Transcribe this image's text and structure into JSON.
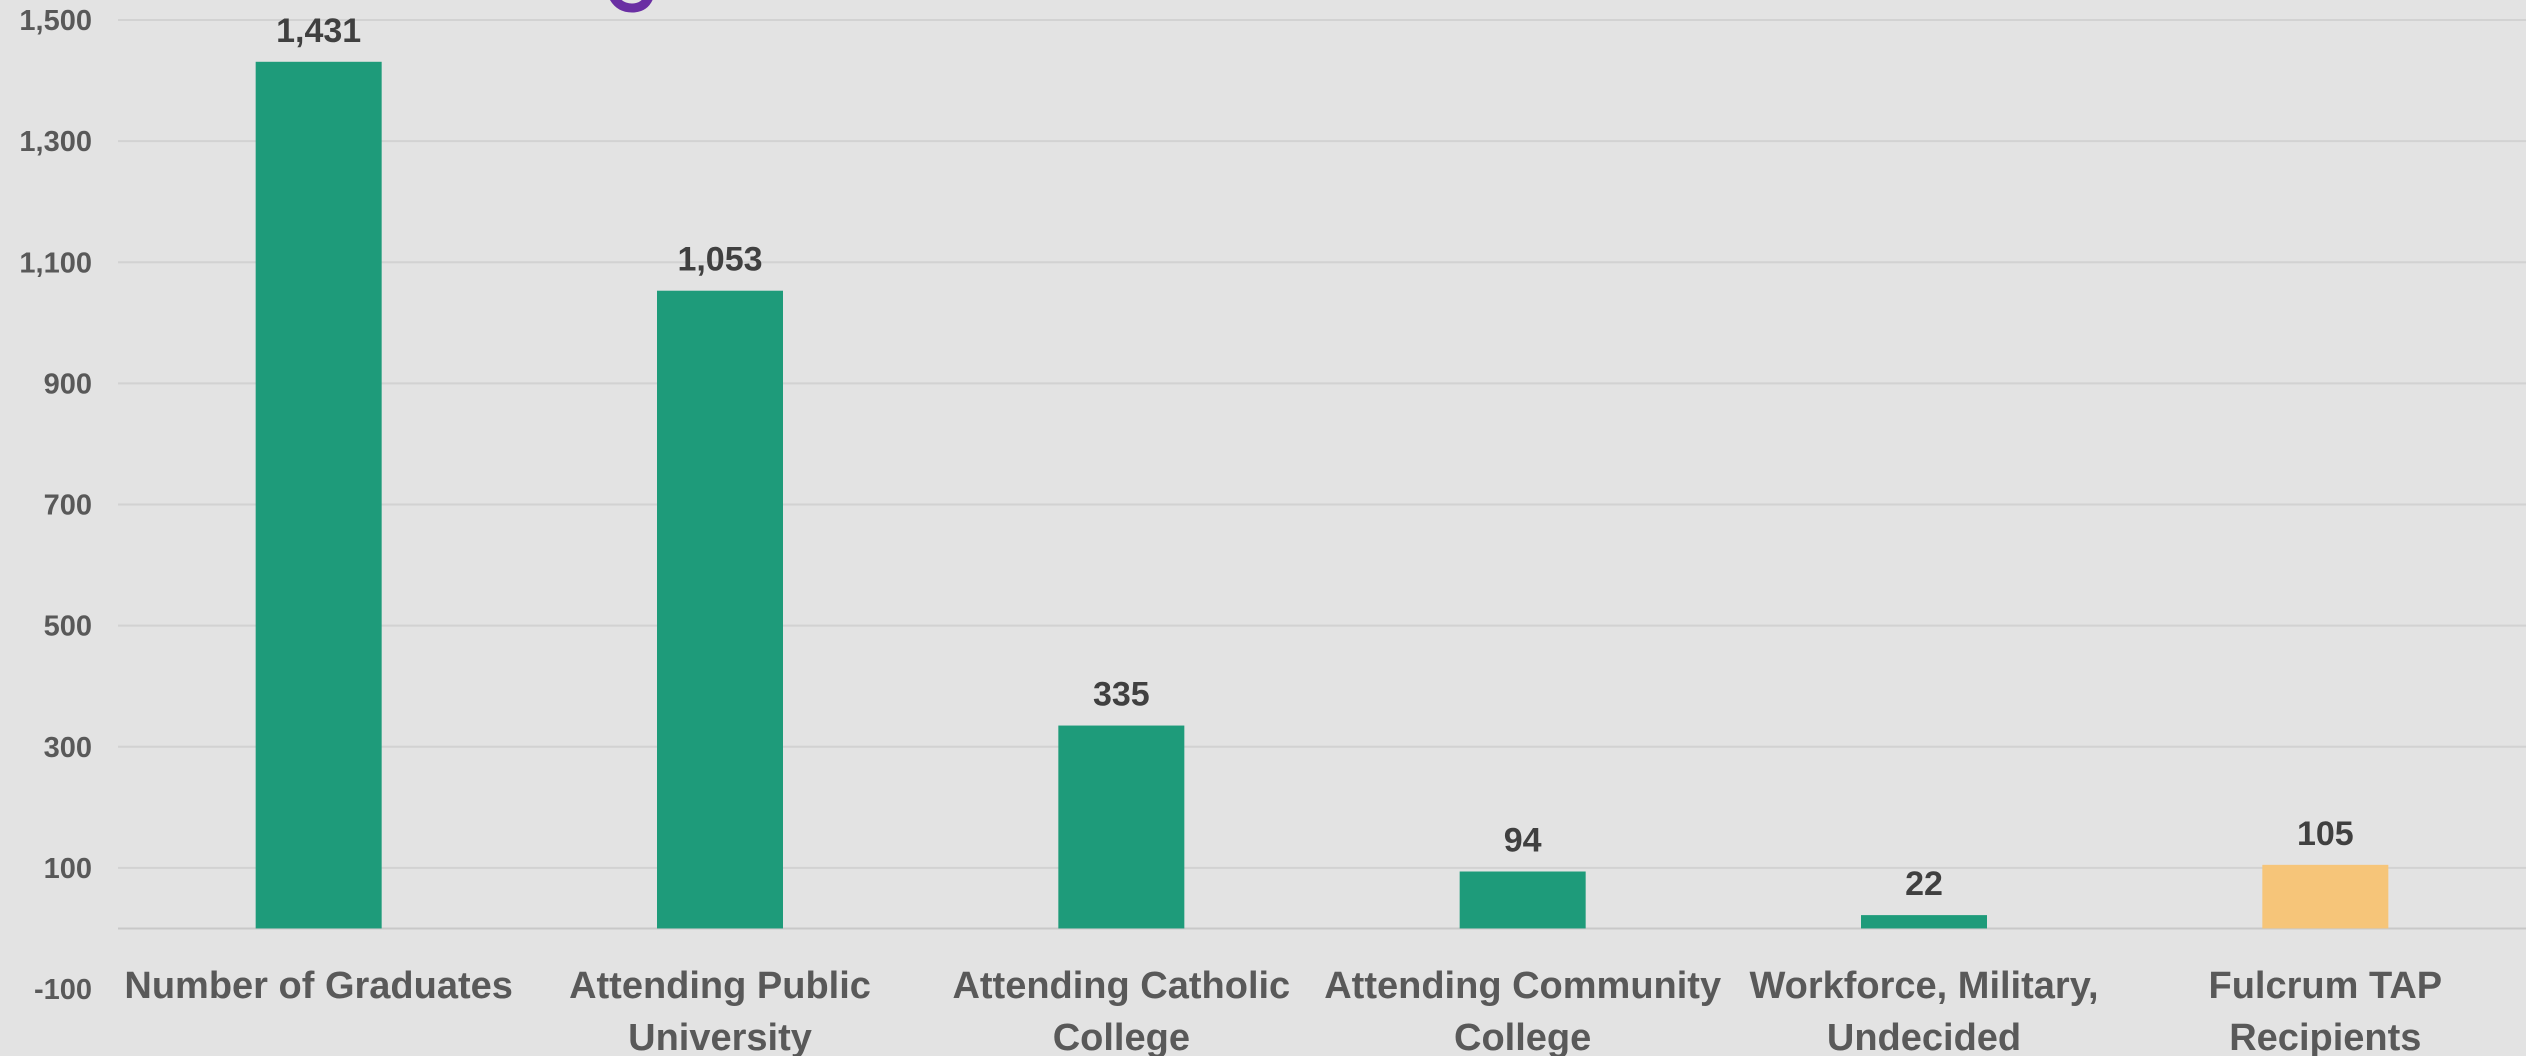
{
  "chart_data": {
    "type": "bar",
    "categories": [
      [
        "Number of Graduates"
      ],
      [
        "Attending Public",
        "University"
      ],
      [
        "Attending Catholic",
        "College"
      ],
      [
        "Attending Community",
        "College"
      ],
      [
        "Workforce, Military,",
        "Undecided"
      ],
      [
        "Fulcrum TAP",
        "Recipients"
      ]
    ],
    "values": [
      1431,
      1053,
      335,
      94,
      22,
      105
    ],
    "data_labels": [
      "1,431",
      "1,053",
      "335",
      "94",
      "22",
      "105"
    ],
    "bar_colors": [
      "#1e9b7a",
      "#1e9b7a",
      "#1e9b7a",
      "#1e9b7a",
      "#1e9b7a",
      "#f6c579"
    ],
    "ylim": [
      -100,
      1500
    ],
    "yticks": [
      1500,
      1300,
      1100,
      900,
      700,
      500,
      300,
      100,
      -100
    ],
    "ytick_labels": [
      "1,500",
      "1,300",
      "1,100",
      "900",
      "700",
      "500",
      "300",
      "100",
      "-100"
    ],
    "grid": true,
    "title": "",
    "xlabel": "",
    "ylabel": ""
  },
  "colors": {
    "background": "#e3e3e3",
    "primary_bar": "#1e9b7a",
    "highlight_bar": "#f6c579",
    "partial_logo_glyph": "#6a2fa3"
  }
}
